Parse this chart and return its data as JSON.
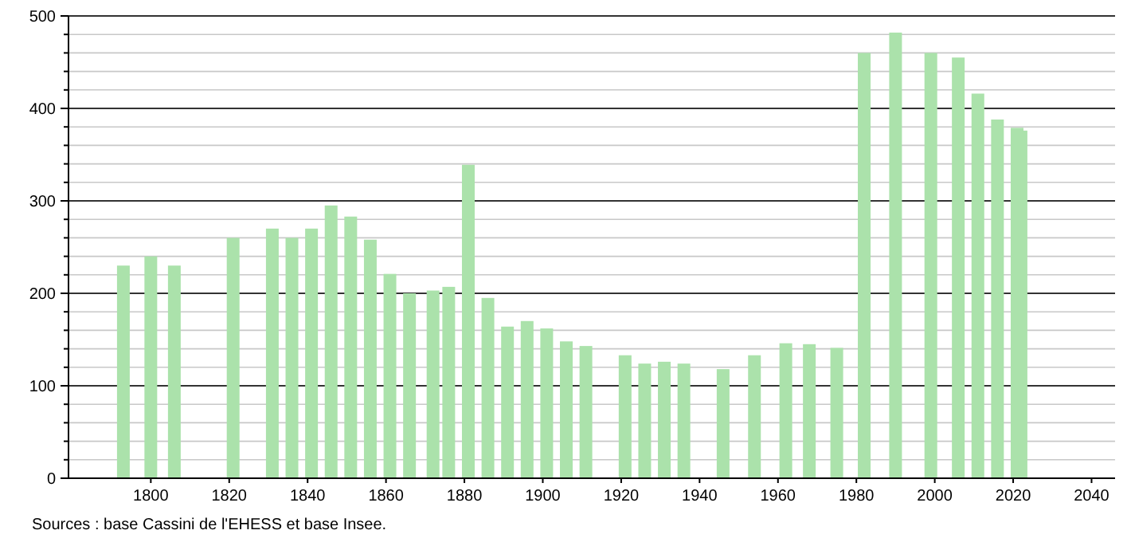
{
  "chart_data": {
    "type": "bar",
    "x": [
      1793,
      1800,
      1806,
      1821,
      1831,
      1836,
      1841,
      1846,
      1851,
      1856,
      1861,
      1866,
      1872,
      1876,
      1881,
      1886,
      1891,
      1896,
      1901,
      1906,
      1911,
      1921,
      1926,
      1931,
      1936,
      1946,
      1954,
      1962,
      1968,
      1975,
      1982,
      1990,
      1999,
      2006,
      2011,
      2016,
      2021,
      2022
    ],
    "values": [
      230,
      240,
      230,
      260,
      270,
      260,
      270,
      295,
      283,
      258,
      221,
      200,
      203,
      207,
      339,
      195,
      164,
      170,
      162,
      148,
      143,
      133,
      124,
      126,
      124,
      118,
      133,
      146,
      145,
      141,
      460,
      482,
      460,
      455,
      416,
      388,
      379,
      376
    ],
    "color": "#abe2ab",
    "xlim": [
      1779,
      2046
    ],
    "xticks": [
      1800,
      1820,
      1840,
      1860,
      1880,
      1900,
      1920,
      1940,
      1960,
      1980,
      2000,
      2020,
      2040
    ],
    "ylim": [
      0,
      500
    ],
    "yticks": [
      0,
      {
        "value": 20,
        "label": null
      },
      {
        "value": 40,
        "label": null
      },
      {
        "value": 60,
        "label": null
      },
      {
        "value": 80,
        "label": null
      },
      100,
      {
        "value": 120,
        "label": null
      },
      {
        "value": 140,
        "label": null
      },
      {
        "value": 160,
        "label": null
      },
      {
        "value": 180,
        "label": null
      },
      200,
      {
        "value": 220,
        "label": null
      },
      {
        "value": 240,
        "label": null
      },
      {
        "value": 260,
        "label": null
      },
      {
        "value": 280,
        "label": null
      },
      300,
      {
        "value": 320,
        "label": null
      },
      {
        "value": 340,
        "label": null
      },
      {
        "value": 360,
        "label": null
      },
      {
        "value": 380,
        "label": null
      },
      400,
      {
        "value": 420,
        "label": null
      },
      {
        "value": 440,
        "label": null
      },
      {
        "value": 460,
        "label": null
      },
      {
        "value": 480,
        "label": null
      },
      500
    ],
    "grid": "y",
    "annotations": [
      "Sources : base Cassini de l'EHESS et base Insee."
    ]
  }
}
